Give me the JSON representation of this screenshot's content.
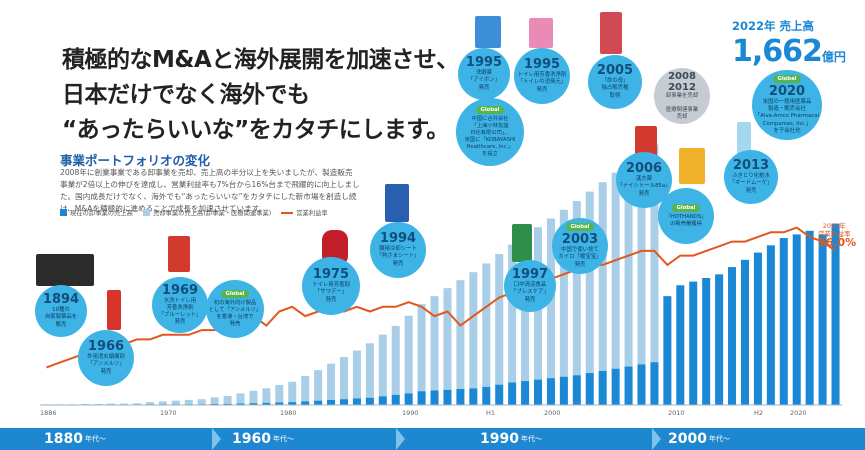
{
  "headline": {
    "line1": "積極的なM&Aと海外展開を加速させ、",
    "line2": "日本だけでなく海外でも",
    "line3": "“あったらいいな”をカタチにします。"
  },
  "section_title": "事業ポートフォリオの変化",
  "body_text": "2008年に創業事業である卸事業を売却、売上高の半分以上を失いましたが、製造販売事業が2倍以上の伸びを達成し、営業利益率も7%台から16%台まで飛躍的に向上しました。国内成長だけでなく、海外でも“あったらいいな”をカタチにした新市場を創造し続け、M&Aを積極的に進めることで成長を加速させています。",
  "legend": {
    "wholesale": "現在の卸事業の売上高",
    "manufacturing": "売却事業の売上高(卸事業・医療関連事業)",
    "margin": "営業利益率"
  },
  "revenue": {
    "label": "2022年 売上高",
    "value": "1,662",
    "unit": "億円"
  },
  "margin_callout": {
    "label": "2022年\n営業利益率",
    "value": "16.0%"
  },
  "axis_ticks": [
    "1886",
    "1970",
    "1980",
    "1990",
    "H1",
    "2000",
    "2010",
    "H2",
    "2020"
  ],
  "eras": [
    {
      "label": "1880",
      "suffix": "年代〜"
    },
    {
      "label": "1960",
      "suffix": "年代〜"
    },
    {
      "label": "1990",
      "suffix": "年代〜"
    },
    {
      "label": "2000",
      "suffix": "年代〜"
    }
  ],
  "milestones": [
    {
      "year": "1894",
      "text": "10種の\n自家製薬品を\n販売",
      "style": "blue"
    },
    {
      "year": "1966",
      "text": "外用消炎鎮痛剤\n「アンメルツ」\n発売",
      "style": "blue"
    },
    {
      "year": "1969",
      "text": "水洗トイレ用\n芳香洗浄剤\n「ブルーレット」\n発売",
      "style": "blue"
    },
    {
      "tag": "Global",
      "text": "初の海外向け製品\nとして「アンメルツ」\nを香港・台湾で\n発売",
      "style": "blue"
    },
    {
      "year": "1975",
      "text": "トイレ用芳香剤\n「サワデー」\n発売",
      "style": "blue"
    },
    {
      "year": "1994",
      "text": "額用冷却シート\n「熱さまシート」\n発売",
      "style": "blue"
    },
    {
      "year": "1995",
      "text": "洗眼薬\n「アイボン」\n発売",
      "style": "blue"
    },
    {
      "year": "1995",
      "text": "トイレ用芳香洗浄剤\n「トイレの消臭元」\n発売",
      "style": "blue"
    },
    {
      "tag": "Global",
      "text": "中国に合弁会社\n「上海小林友誼\n日化有限公司」、\n米国に「KOBAYASHI\nHealthcare, Inc.」\nを設立",
      "style": "blue"
    },
    {
      "year": "1997",
      "text": "口中清涼食品\n「ブレスケア」\n発売",
      "style": "blue"
    },
    {
      "year": "2003",
      "text": "中国で使い捨て\nカイロ「暖宝宝」\n発売",
      "style": "blue",
      "tag": "Global"
    },
    {
      "year": "2005",
      "text": "「命の母」\n独占販売権\n取得",
      "style": "blue"
    },
    {
      "year": "2006",
      "text": "漢方薬\n「ナイシトール85a」\n発売",
      "style": "blue"
    },
    {
      "tag": "Global",
      "text": "「HOTHANDS」\nの販売権獲得",
      "style": "blue"
    },
    {
      "year": "2008",
      "year2": "2012",
      "text": "卸事業を売却\n\n医療関連事業\n売却",
      "style": "gray"
    },
    {
      "year": "2013",
      "text": "ふきとり化粧水\n「オードムーゲ」\n発売",
      "style": "blue"
    },
    {
      "year": "2020",
      "text": "米国の一般用医薬品\n製造・販売会社\n「Alva-Amco Pharmacal\nCompanies, Inc.」\nを子会社化",
      "style": "blue",
      "tag": "Global"
    }
  ],
  "colors": {
    "current_business": "#1b88d6",
    "divested_business": "#a9cfe8",
    "operating_margin": "#e2561f",
    "global_tag": "#56b44b",
    "era_band": "#1d87d0"
  },
  "chart_data": {
    "type": "bar",
    "x": [
      "1886",
      "1890",
      "1895",
      "1900",
      "1905",
      "1910",
      "1915",
      "1920",
      "1925",
      "1930",
      "1935",
      "1940",
      "1945",
      "1950",
      "1955",
      "1960",
      "1964",
      "1966",
      "1968",
      "1970",
      "1972",
      "1974",
      "1976",
      "1978",
      "1980",
      "1982",
      "1984",
      "1986",
      "1988",
      "1990",
      "1991",
      "1992",
      "1993",
      "1994",
      "1995",
      "1996",
      "1997",
      "1998",
      "1999",
      "2000",
      "2001",
      "2002",
      "2003",
      "2004",
      "2005",
      "2006",
      "2007",
      "2008",
      "2009",
      "2010",
      "2011",
      "2012",
      "2013",
      "2014",
      "2015",
      "2016",
      "2017",
      "2018",
      "2019",
      "2020",
      "2021",
      "2022"
    ],
    "series": [
      {
        "name": "現在の卸事業の売上高",
        "values": [
          1,
          1,
          1,
          1,
          1,
          1,
          1,
          1,
          2,
          2,
          2,
          2,
          2,
          3,
          3,
          4,
          5,
          6,
          7,
          8,
          10,
          12,
          14,
          16,
          18,
          20,
          24,
          28,
          32,
          38,
          40,
          42,
          44,
          46,
          50,
          56,
          62,
          66,
          70,
          74,
          78,
          82,
          88,
          94,
          100,
          106,
          112,
          118,
          300,
          330,
          340,
          350,
          360,
          380,
          400,
          420,
          440,
          460,
          470,
          480,
          470,
          500
        ]
      },
      {
        "name": "売却事業の売上高(卸事業・医療関連事業)",
        "values": [
          1,
          1,
          1,
          2,
          2,
          3,
          3,
          4,
          6,
          8,
          10,
          12,
          14,
          18,
          22,
          28,
          34,
          40,
          48,
          56,
          70,
          84,
          100,
          116,
          132,
          150,
          170,
          190,
          214,
          240,
          260,
          280,
          300,
          320,
          340,
          360,
          380,
          400,
          420,
          440,
          460,
          480,
          500,
          520,
          540,
          560,
          580,
          600,
          0,
          0,
          0,
          0,
          0,
          0,
          0,
          0,
          0,
          0,
          0,
          0,
          0,
          0
        ]
      },
      {
        "name": "営業利益率",
        "values": [
          3.5,
          4.0,
          4.5,
          5.0,
          5.5,
          6.0,
          6.0,
          6.5,
          6.5,
          7.0,
          7.0,
          7.0,
          7.5,
          7.5,
          8.0,
          8.5,
          9.0,
          8.0,
          9.5,
          10.0,
          9.0,
          9.5,
          10.0,
          9.5,
          10.0,
          9.5,
          10.0,
          10.0,
          10.5,
          10.0,
          9.0,
          9.5,
          8.0,
          9.0,
          10.0,
          11.0,
          11.5,
          12.0,
          12.5,
          13.0,
          13.5,
          14.0,
          14.5,
          14.5,
          15.0,
          15.5,
          16.0,
          16.0,
          14.5,
          15.5,
          15.5,
          16.0,
          16.5,
          17.0,
          17.0,
          17.5,
          18.0,
          18.0,
          18.5,
          17.5,
          17.0,
          16.0
        ]
      }
    ],
    "unit_revenue": "億円",
    "unit_margin": "%",
    "grid": false,
    "legend_position": "top-left"
  }
}
